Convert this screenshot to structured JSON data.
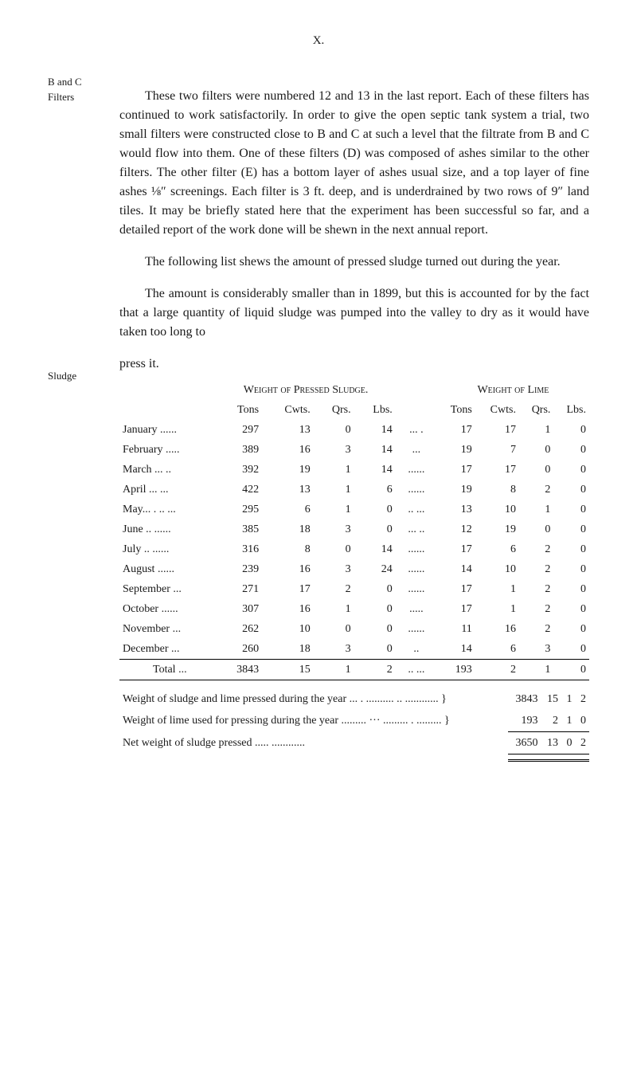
{
  "page_marker": "X.",
  "margin": {
    "note1a": "B and C",
    "note1b": "Filters",
    "note2": "Sludge"
  },
  "paragraphs": {
    "p1": "These two filters were numbered 12 and 13 in the last report. Each of these filters has continued to work satisfactorily. In order to give the open septic tank system a trial, two small filters were constructed close to B and C at such a level that the filtrate from B and C would flow into them. One of these filters (D) was composed of ashes similar to the other filters. The other filter (E) has a bottom layer of ashes usual size, and a top layer of fine ashes ⅛″ screenings. Each filter is 3 ft. deep, and is underdrained by two rows of 9″ land tiles. It may be briefly stated here that the experiment has been successful so far, and a detailed report of the work done will be shewn in the next annual report.",
    "p2": "The following list shews the amount of pressed sludge turned out during the year.",
    "p3": "The amount is considerably smaller than in 1899, but this is accounted for by the fact that a large quantity of liquid sludge was pumped into the valley to dry as it would have taken too long to",
    "press_it": "press it."
  },
  "table": {
    "header_left": "Weight of Pressed Sludge.",
    "header_right": "Weight of Lime",
    "cols_left": [
      "Tons",
      "Cwts.",
      "Qrs.",
      "Lbs."
    ],
    "cols_right": [
      "Tons",
      "Cwts.",
      "Qrs.",
      "Lbs."
    ],
    "rows": [
      {
        "month": "January ......",
        "tons": "297",
        "cwts": "13",
        "qrs": "0",
        "lbs": "14",
        "sep": "... .",
        "ltons": "17",
        "lcwts": "17",
        "lqrs": "1",
        "llbs": "0"
      },
      {
        "month": "February .....",
        "tons": "389",
        "cwts": "16",
        "qrs": "3",
        "lbs": "14",
        "sep": "...",
        "ltons": "19",
        "lcwts": "7",
        "lqrs": "0",
        "llbs": "0"
      },
      {
        "month": "March ... ..",
        "tons": "392",
        "cwts": "19",
        "qrs": "1",
        "lbs": "14",
        "sep": "......",
        "ltons": "17",
        "lcwts": "17",
        "lqrs": "0",
        "llbs": "0"
      },
      {
        "month": "April ... ...",
        "tons": "422",
        "cwts": "13",
        "qrs": "1",
        "lbs": "6",
        "sep": "......",
        "ltons": "19",
        "lcwts": "8",
        "lqrs": "2",
        "llbs": "0"
      },
      {
        "month": "May... . .. ...",
        "tons": "295",
        "cwts": "6",
        "qrs": "1",
        "lbs": "0",
        "sep": ".. ...",
        "ltons": "13",
        "lcwts": "10",
        "lqrs": "1",
        "llbs": "0"
      },
      {
        "month": "June .. ......",
        "tons": "385",
        "cwts": "18",
        "qrs": "3",
        "lbs": "0",
        "sep": "... ..",
        "ltons": "12",
        "lcwts": "19",
        "lqrs": "0",
        "llbs": "0"
      },
      {
        "month": "July .. ......",
        "tons": "316",
        "cwts": "8",
        "qrs": "0",
        "lbs": "14",
        "sep": "......",
        "ltons": "17",
        "lcwts": "6",
        "lqrs": "2",
        "llbs": "0"
      },
      {
        "month": "August ......",
        "tons": "239",
        "cwts": "16",
        "qrs": "3",
        "lbs": "24",
        "sep": "......",
        "ltons": "14",
        "lcwts": "10",
        "lqrs": "2",
        "llbs": "0"
      },
      {
        "month": "September ...",
        "tons": "271",
        "cwts": "17",
        "qrs": "2",
        "lbs": "0",
        "sep": "......",
        "ltons": "17",
        "lcwts": "1",
        "lqrs": "2",
        "llbs": "0"
      },
      {
        "month": "October ......",
        "tons": "307",
        "cwts": "16",
        "qrs": "1",
        "lbs": "0",
        "sep": ".....",
        "ltons": "17",
        "lcwts": "1",
        "lqrs": "2",
        "llbs": "0"
      },
      {
        "month": "November ...",
        "tons": "262",
        "cwts": "10",
        "qrs": "0",
        "lbs": "0",
        "sep": "......",
        "ltons": "11",
        "lcwts": "16",
        "lqrs": "2",
        "llbs": "0"
      },
      {
        "month": "December ...",
        "tons": "260",
        "cwts": "18",
        "qrs": "3",
        "lbs": "0",
        "sep": "..",
        "ltons": "14",
        "lcwts": "6",
        "lqrs": "3",
        "llbs": "0"
      }
    ],
    "total": {
      "label": "Total ...",
      "tons": "3843",
      "cwts": "15",
      "qrs": "1",
      "lbs": "2",
      "sep": ".. ...",
      "ltons": "193",
      "lcwts": "2",
      "lqrs": "1",
      "llbs": "0"
    }
  },
  "summary": {
    "row1": {
      "label": "Weight of sludge and lime pressed during the year ... . .......... .. ............ }",
      "tons": "3843",
      "cwts": "15",
      "qrs": "1",
      "lbs": "2"
    },
    "row2": {
      "label": "Weight of lime used for pressing during the year ......... ··· ......... . ......... }",
      "tons": "193",
      "cwts": "2",
      "qrs": "1",
      "lbs": "0"
    },
    "row3": {
      "label": "Net weight of sludge pressed ..... ............",
      "tons": "3650",
      "cwts": "13",
      "qrs": "0",
      "lbs": "2"
    }
  }
}
